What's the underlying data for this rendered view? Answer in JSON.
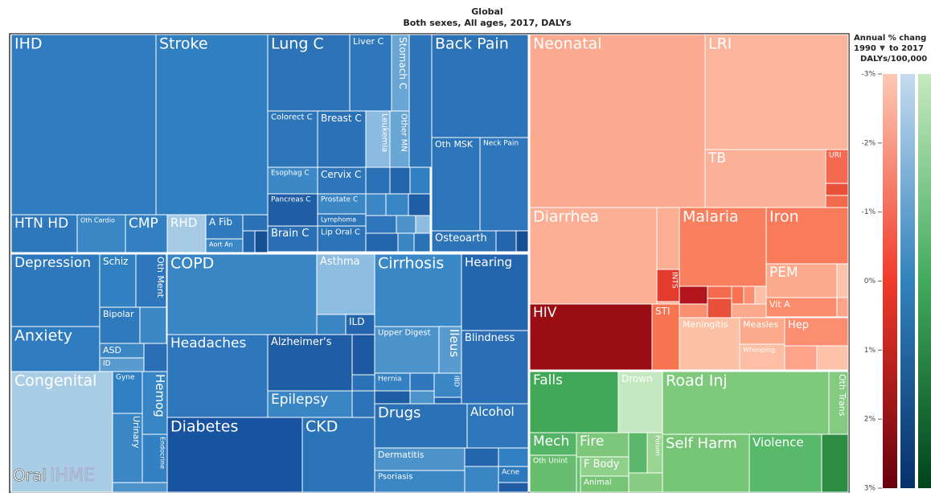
{
  "header": {
    "title": "Global",
    "subtitle": "Both sexes, All ages, 2017, DALYs"
  },
  "legend": {
    "title": "Annual % chang",
    "range_from": "1990",
    "range_to": "to 2017",
    "unit": "DALYs/100,000",
    "ticks": [
      "-3%",
      "-2%",
      "-1%",
      "0%",
      "1%",
      "2%",
      "3%"
    ]
  },
  "cells": [
    "IHD",
    "Stroke",
    "HTN HD",
    "Oth Cardio",
    "CMP",
    "RHD",
    "A Fib",
    "Aort An",
    "Lung C",
    "Liver C",
    "Stomach C",
    "Colorect C",
    "Breast C",
    "Leukemia",
    "Other MN",
    "Esophag C",
    "Cervix C",
    "Pancreas C",
    "Prostate C",
    "Lymphoma",
    "Brain C",
    "Lip Oral C",
    "Back Pain",
    "Oth MSK",
    "Neck Pain",
    "Osteoarth",
    "Depression",
    "Schiz",
    "Oth Ment",
    "Bipolar",
    "Anxiety",
    "ASD",
    "ID",
    "COPD",
    "Asthma",
    "ILD",
    "Headaches",
    "Alzheimer's",
    "Epilepsy",
    "Cirrhosis",
    "Hearing",
    "Upper Digest",
    "Ileus",
    "Blindness",
    "Hernia",
    "IBD",
    "Drugs",
    "Alcohol",
    "Dermatitis",
    "Psoriasis",
    "Acne",
    "Congenital",
    "Gyne",
    "Hemog",
    "Urinary",
    "Endocrine",
    "Diabetes",
    "CKD",
    "Neonatal",
    "LRI",
    "TB",
    "URI",
    "Diarrhea",
    "INTS",
    "Malaria",
    "Iron",
    "PEM",
    "Vit A",
    "HIV",
    "STI",
    "Meningitis",
    "Measles",
    "Hep",
    "Whooping",
    "Falls",
    "Drown",
    "Road Inj",
    "Oth Trans",
    "Mech",
    "Fire",
    "Poison",
    "Oth Unint",
    "F Body",
    "Animal",
    "Self Harm",
    "Violence"
  ],
  "watermark": {
    "left": "Oral",
    "brand": "IHME"
  }
}
